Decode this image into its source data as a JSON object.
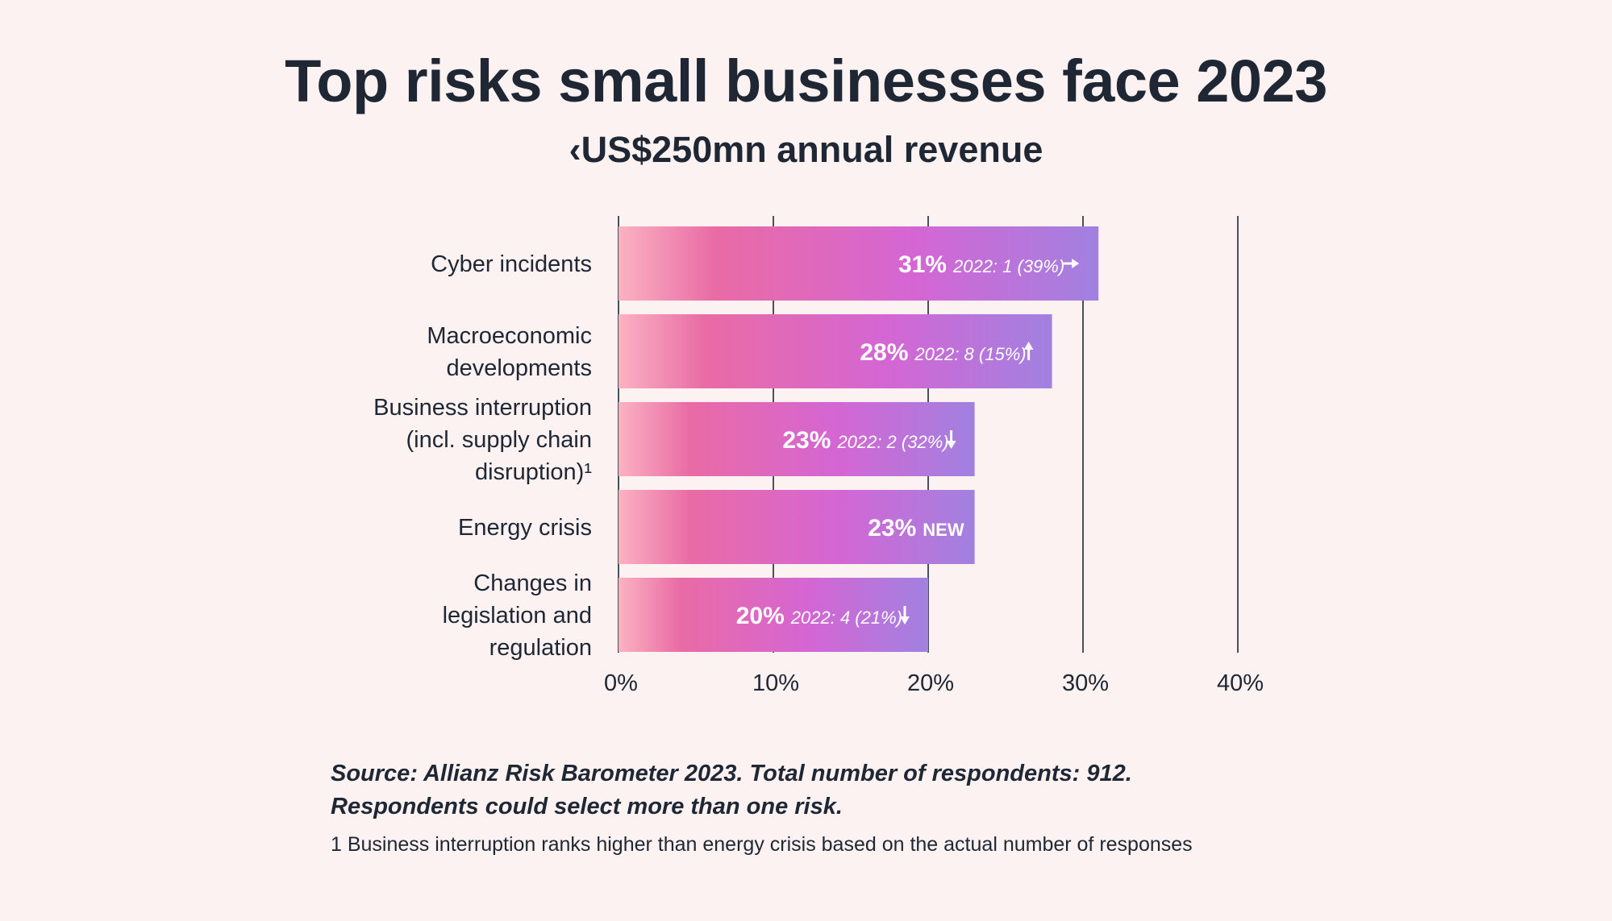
{
  "title": "Top risks small businesses face 2023",
  "subtitle": "‹US$250mn annual revenue",
  "chart_data": {
    "type": "bar",
    "orientation": "horizontal",
    "categories": [
      [
        "Cyber incidents"
      ],
      [
        "Macroeconomic",
        "developments"
      ],
      [
        "Business interruption",
        "(incl. supply chain",
        "disruption)¹"
      ],
      [
        "Energy crisis"
      ],
      [
        "Changes in",
        "legislation and",
        "regulation"
      ]
    ],
    "values": [
      31,
      28,
      23,
      23,
      20
    ],
    "value_labels": [
      "31%",
      "28%",
      "23%",
      "23%",
      "20%"
    ],
    "annotations": [
      "2022: 1 (39%)",
      "2022: 8 (15%)",
      "2022: 2 (32%)",
      "NEW",
      "2022: 4 (21%)"
    ],
    "trend": [
      "same",
      "up",
      "down",
      "new",
      "down"
    ],
    "xlim": [
      0,
      40
    ],
    "xticks": [
      0,
      10,
      20,
      30,
      40
    ],
    "xtick_labels": [
      "0%",
      "10%",
      "20%",
      "30%",
      "40%"
    ],
    "grid": true,
    "xlabel": "",
    "ylabel": "",
    "colors": {
      "bar_start": "#fbb2c2",
      "bar_mid": "#e96ba5",
      "bar_magenta": "#d466d4",
      "bar_end": "#a181e0",
      "label_text": "#ffffff",
      "grid": "#1e2733"
    }
  },
  "footer": {
    "source_line1": "Source: Allianz Risk Barometer 2023. Total number of respondents: 912.",
    "source_line2": "Respondents could select more than one risk.",
    "note": "1 Business interruption ranks higher than energy crisis based on the actual number of responses"
  }
}
